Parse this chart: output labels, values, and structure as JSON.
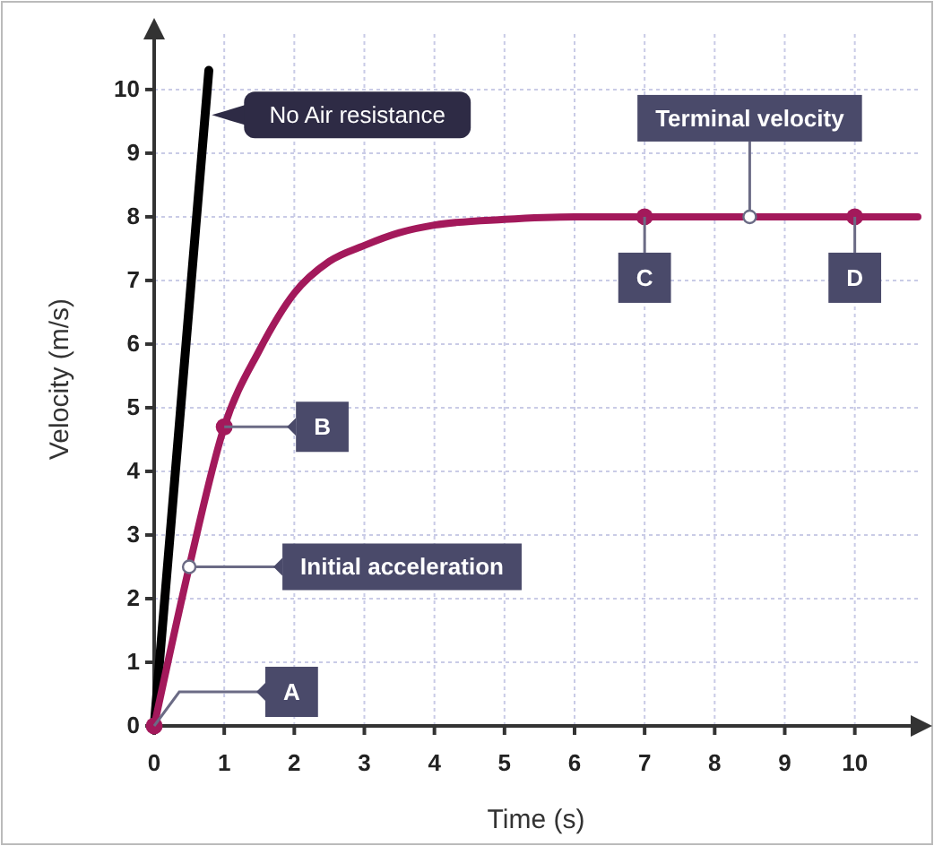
{
  "chart_data": {
    "type": "line",
    "xlabel": "Time (s)",
    "ylabel": "Velocity (m/s)",
    "xlim": [
      0,
      10.9
    ],
    "ylim": [
      0,
      10.9
    ],
    "xticks": [
      0,
      1,
      2,
      3,
      4,
      5,
      6,
      7,
      8,
      9,
      10
    ],
    "yticks": [
      0,
      1,
      2,
      3,
      4,
      5,
      6,
      7,
      8,
      9,
      10
    ],
    "grid": true,
    "line_style": "solid",
    "series": [
      {
        "color": "#000000",
        "x": [
          0,
          0.78
        ],
        "values": [
          0,
          10.3
        ]
      },
      {
        "color": "#a3195b",
        "x": [
          0,
          0.5,
          1,
          1.5,
          2,
          2.5,
          3,
          3.5,
          4,
          5,
          6,
          7,
          8,
          9,
          10,
          10.9
        ],
        "values": [
          0,
          2.5,
          4.7,
          5.9,
          6.8,
          7.3,
          7.55,
          7.75,
          7.87,
          7.96,
          8,
          8,
          8,
          8,
          8,
          8
        ]
      },
      {
        "type": "scatter",
        "marker": "circle",
        "color": "#a3195b",
        "x": [
          0,
          1,
          7,
          10
        ],
        "values": [
          0,
          4.7,
          8,
          8
        ]
      }
    ],
    "annotations": [
      {
        "text": "No Air resistance",
        "x": 0.72,
        "y": 9.6
      },
      {
        "text": "Terminal velocity",
        "x": 8.5,
        "y": 8
      },
      {
        "text": "C",
        "x": 7,
        "y": 8
      },
      {
        "text": "D",
        "x": 10,
        "y": 8
      },
      {
        "text": "B",
        "x": 1,
        "y": 4.7
      },
      {
        "text": "Initial acceleration",
        "x": 0.5,
        "y": 2.5
      },
      {
        "text": "A",
        "x": 0,
        "y": 0
      }
    ]
  }
}
